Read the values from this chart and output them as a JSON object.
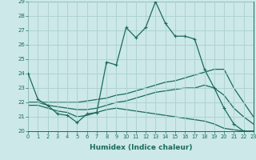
{
  "xlabel": "Humidex (Indice chaleur)",
  "ylabel": "",
  "xlim": [
    0,
    23
  ],
  "ylim": [
    20,
    29
  ],
  "bg_color": "#cce8e8",
  "line_color": "#1a6b5e",
  "grid_color": "#aad0d0",
  "line1_y": [
    24.0,
    22.2,
    21.8,
    21.2,
    21.1,
    20.6,
    21.2,
    21.3,
    24.8,
    24.6,
    27.2,
    26.5,
    27.2,
    29.0,
    27.5,
    26.6,
    26.6,
    26.4,
    24.3,
    23.0,
    21.6,
    20.5,
    20.0,
    20.0
  ],
  "line2_y": [
    22.0,
    22.0,
    22.0,
    22.0,
    22.0,
    22.0,
    22.1,
    22.2,
    22.3,
    22.5,
    22.6,
    22.8,
    23.0,
    23.2,
    23.4,
    23.5,
    23.7,
    23.9,
    24.1,
    24.3,
    24.3,
    23.0,
    22.0,
    21.0
  ],
  "line3_y": [
    22.0,
    22.0,
    21.8,
    21.7,
    21.6,
    21.5,
    21.5,
    21.6,
    21.8,
    22.0,
    22.1,
    22.3,
    22.5,
    22.7,
    22.8,
    22.9,
    23.0,
    23.0,
    23.2,
    23.0,
    22.5,
    21.6,
    21.0,
    20.5
  ],
  "line4_y": [
    21.8,
    21.8,
    21.6,
    21.4,
    21.3,
    21.0,
    21.1,
    21.3,
    21.5,
    21.6,
    21.5,
    21.4,
    21.3,
    21.2,
    21.1,
    21.0,
    20.9,
    20.8,
    20.7,
    20.5,
    20.2,
    20.1,
    20.0,
    20.0
  ]
}
